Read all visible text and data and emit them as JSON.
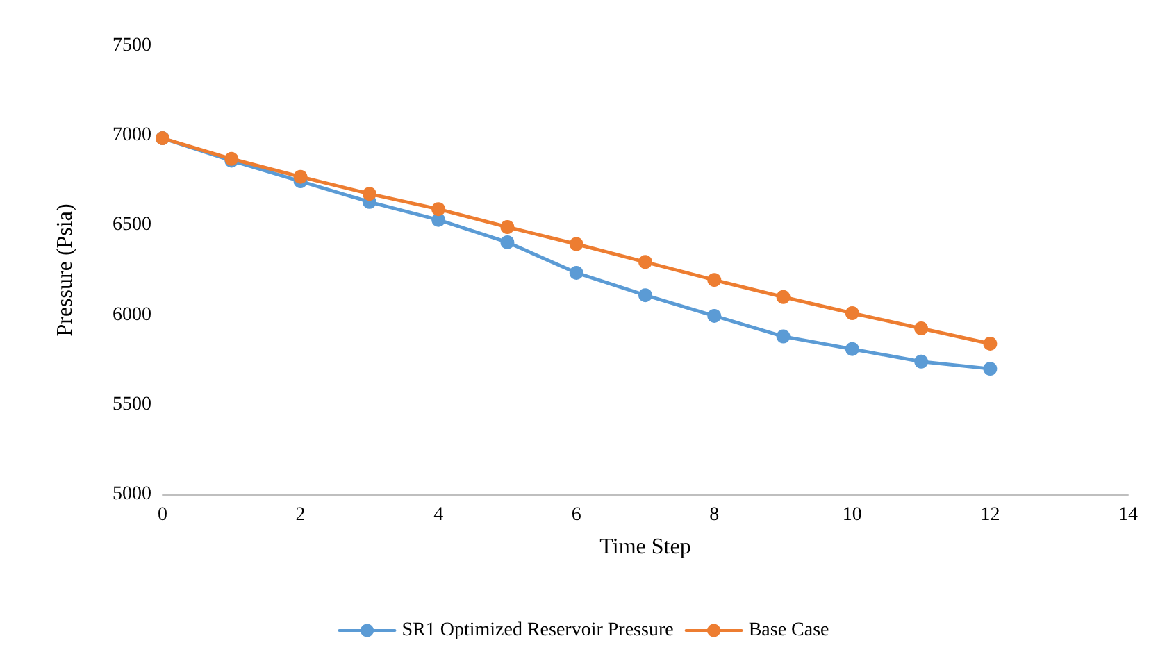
{
  "chart_data": {
    "type": "line",
    "xlabel": "Time Step",
    "ylabel": "Pressure (Psia)",
    "x": [
      0,
      1,
      2,
      3,
      4,
      5,
      6,
      7,
      8,
      9,
      10,
      11,
      12
    ],
    "series": [
      {
        "name": "SR1 Optimized Reservoir Pressure",
        "color": "#5b9bd5",
        "values": [
          6985,
          6860,
          6745,
          6630,
          6530,
          6405,
          6235,
          6110,
          5995,
          5880,
          5810,
          5740,
          5700
        ]
      },
      {
        "name": "Base Case",
        "color": "#ed7d31",
        "values": [
          6985,
          6870,
          6770,
          6675,
          6590,
          6490,
          6395,
          6295,
          6195,
          6100,
          6010,
          5925,
          5840
        ]
      }
    ],
    "xlim": [
      0,
      14
    ],
    "xticks": [
      0,
      2,
      4,
      6,
      8,
      10,
      12,
      14
    ],
    "ylim": [
      5000,
      7500
    ],
    "yticks": [
      5000,
      5500,
      6000,
      6500,
      7000,
      7500
    ],
    "grid": false,
    "legend": "bottom",
    "marker": "circle",
    "line_style": "solid"
  }
}
